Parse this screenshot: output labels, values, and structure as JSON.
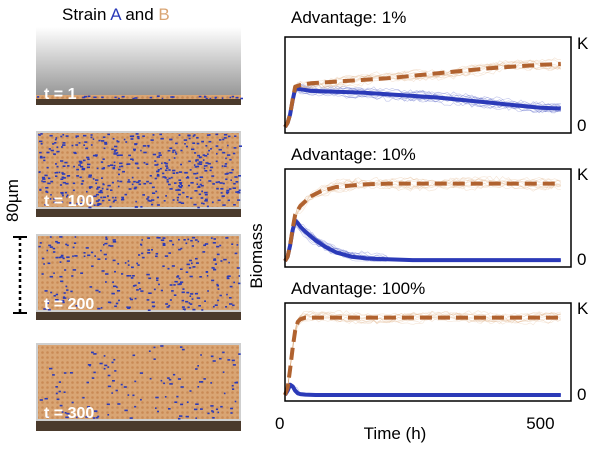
{
  "figure": {
    "heading": {
      "prefix": "Strain ",
      "strain_a": "A",
      "connector": " and ",
      "strain_b": "B"
    },
    "scale_bar_label": "80µm",
    "colors": {
      "strain_a": "#2b3ab8",
      "strain_b": "#d9a574",
      "strain_b_line": "#b0622f",
      "substrate": "#4a3a2c",
      "sim_gray": "#b9b9b9"
    },
    "snapshots": [
      {
        "time_label": "t = 1",
        "fill_fraction": 0.05,
        "strain_a_fraction": 0.5
      },
      {
        "time_label": "t = 100",
        "fill_fraction": 1.0,
        "strain_a_fraction": 0.45
      },
      {
        "time_label": "t = 200",
        "fill_fraction": 1.0,
        "strain_a_fraction": 0.25
      },
      {
        "time_label": "t = 300",
        "fill_fraction": 1.0,
        "strain_a_fraction": 0.12
      }
    ]
  },
  "chart_data": [
    {
      "type": "line",
      "title": "Advantage: 1%",
      "xlabel": "Time (h)",
      "ylabel": "Biomass",
      "xlim": [
        0,
        560
      ],
      "ylim": [
        0,
        1
      ],
      "y_tick_labels": {
        "top": "K",
        "bottom": "0"
      },
      "series": [
        {
          "strain": "A",
          "style": "solid",
          "x": [
            0,
            5,
            10,
            15,
            20,
            30,
            50,
            100,
            150,
            200,
            250,
            300,
            350,
            400,
            450,
            500,
            540
          ],
          "y": [
            0.0,
            0.05,
            0.15,
            0.32,
            0.46,
            0.45,
            0.43,
            0.42,
            0.41,
            0.39,
            0.37,
            0.35,
            0.32,
            0.29,
            0.26,
            0.23,
            0.22
          ]
        },
        {
          "strain": "B",
          "style": "dashed",
          "x": [
            0,
            5,
            10,
            15,
            20,
            30,
            50,
            100,
            150,
            200,
            250,
            300,
            350,
            400,
            450,
            500,
            540
          ],
          "y": [
            0.0,
            0.05,
            0.15,
            0.33,
            0.48,
            0.5,
            0.52,
            0.54,
            0.56,
            0.58,
            0.61,
            0.64,
            0.67,
            0.7,
            0.72,
            0.74,
            0.75
          ]
        }
      ],
      "x_ticks": [
        {
          "value": 0,
          "label": "0"
        },
        {
          "value": 500,
          "label": "500"
        }
      ]
    },
    {
      "type": "line",
      "title": "Advantage: 10%",
      "xlabel": "Time (h)",
      "ylabel": "Biomass",
      "xlim": [
        0,
        560
      ],
      "ylim": [
        0,
        1
      ],
      "y_tick_labels": {
        "top": "K",
        "bottom": "0"
      },
      "series": [
        {
          "strain": "A",
          "style": "solid",
          "x": [
            0,
            5,
            10,
            15,
            20,
            25,
            30,
            40,
            60,
            80,
            100,
            130,
            160,
            200,
            250,
            300,
            400,
            540
          ],
          "y": [
            0.0,
            0.05,
            0.18,
            0.36,
            0.47,
            0.44,
            0.4,
            0.34,
            0.24,
            0.16,
            0.1,
            0.05,
            0.03,
            0.02,
            0.01,
            0.01,
            0.01,
            0.01
          ]
        },
        {
          "strain": "B",
          "style": "dashed",
          "x": [
            0,
            5,
            10,
            15,
            20,
            30,
            50,
            70,
            100,
            150,
            200,
            300,
            400,
            540
          ],
          "y": [
            0.0,
            0.05,
            0.18,
            0.38,
            0.54,
            0.64,
            0.75,
            0.81,
            0.86,
            0.89,
            0.9,
            0.9,
            0.9,
            0.9
          ]
        }
      ],
      "x_ticks": [
        {
          "value": 0,
          "label": "0"
        },
        {
          "value": 500,
          "label": "500"
        }
      ]
    },
    {
      "type": "line",
      "title": "Advantage: 100%",
      "xlabel": "Time (h)",
      "ylabel": "Biomass",
      "xlim": [
        0,
        560
      ],
      "ylim": [
        0,
        1
      ],
      "y_tick_labels": {
        "top": "K",
        "bottom": "0"
      },
      "series": [
        {
          "strain": "A",
          "style": "solid",
          "x": [
            0,
            5,
            10,
            15,
            20,
            25,
            30,
            40,
            60,
            100,
            200,
            300,
            540
          ],
          "y": [
            0.0,
            0.05,
            0.12,
            0.1,
            0.05,
            0.02,
            0.01,
            0.005,
            0.0,
            0.0,
            0.0,
            0.0,
            0.0
          ]
        },
        {
          "strain": "B",
          "style": "dashed",
          "x": [
            0,
            5,
            10,
            15,
            20,
            25,
            30,
            40,
            60,
            100,
            200,
            300,
            540
          ],
          "y": [
            0.0,
            0.08,
            0.3,
            0.55,
            0.75,
            0.85,
            0.88,
            0.9,
            0.9,
            0.9,
            0.9,
            0.9,
            0.9
          ]
        }
      ],
      "x_ticks": [
        {
          "value": 0,
          "label": "0"
        },
        {
          "value": 500,
          "label": "500"
        }
      ]
    }
  ]
}
